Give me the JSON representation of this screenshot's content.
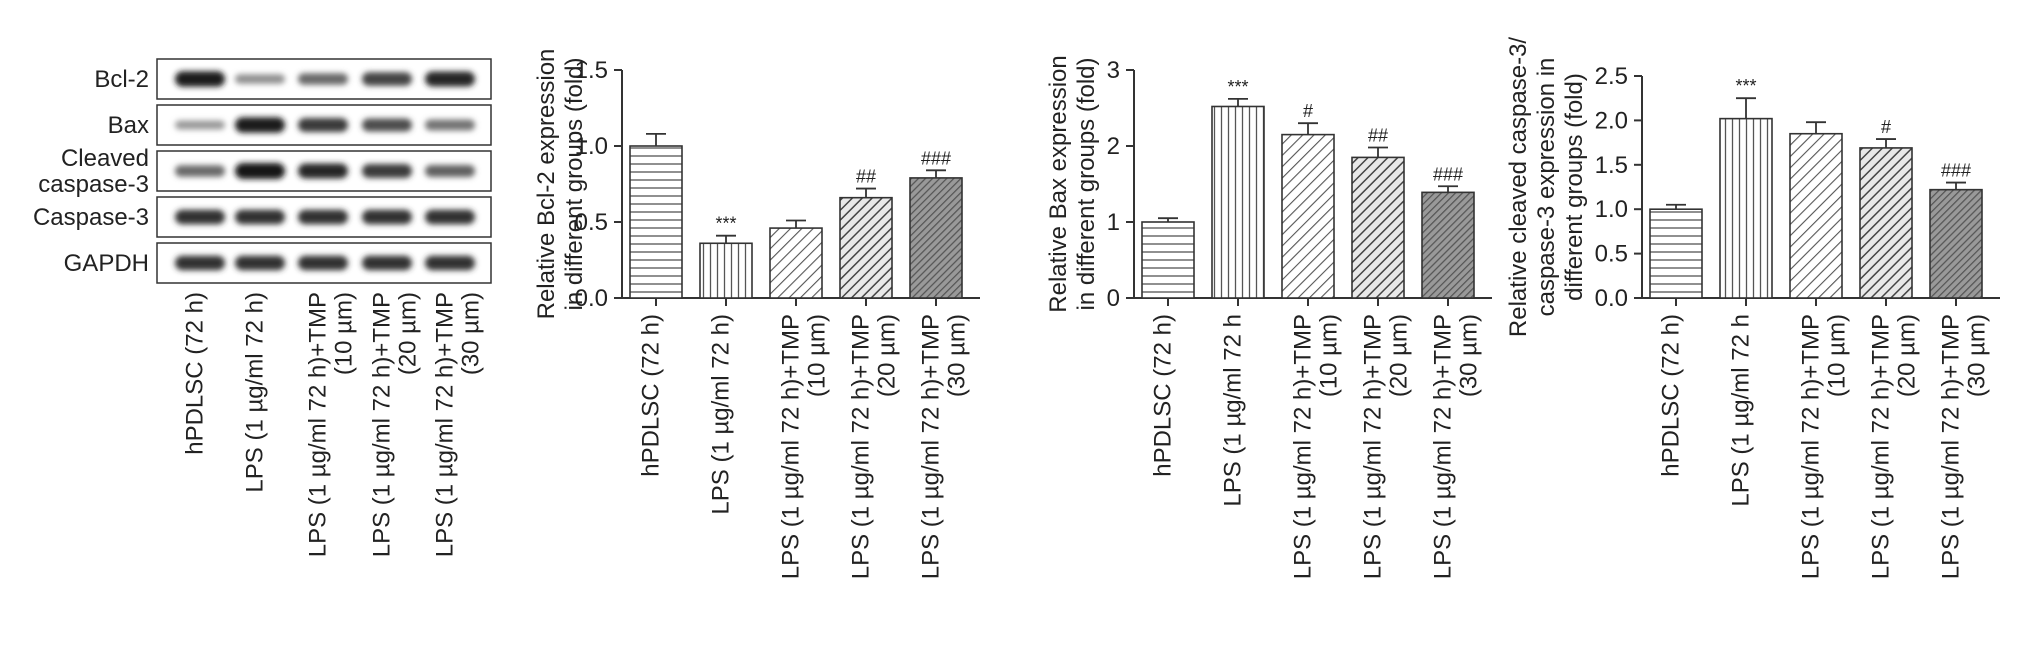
{
  "blot": {
    "rows": [
      "Bcl-2",
      "Bax",
      "Cleaved\ncaspase-3",
      "Caspase-3",
      "GAPDH"
    ],
    "lanes": [
      "hPDLSC (72 h)",
      "LPS (1 µg/ml 72 h)",
      "LPS (1 µg/ml 72 h)+TMP\n(10 µm)",
      "LPS (1 µg/ml 72 h)+TMP\n(20 µm)",
      "LPS (1 µg/ml 72 h)+TMP\n(30 µm)"
    ],
    "band_intensity": [
      [
        0.95,
        0.35,
        0.55,
        0.75,
        0.9
      ],
      [
        0.3,
        0.95,
        0.8,
        0.7,
        0.5
      ],
      [
        0.55,
        1.0,
        0.9,
        0.8,
        0.6
      ],
      [
        0.85,
        0.85,
        0.85,
        0.85,
        0.85
      ],
      [
        0.85,
        0.85,
        0.85,
        0.85,
        0.85
      ]
    ]
  },
  "chart_data": [
    {
      "type": "bar",
      "ylabel": "Relative Bcl-2 expression\nin different groups (fold)",
      "categories": [
        "hPDLSC (72 h)",
        "LPS (1 µg/ml 72 h)",
        "LPS (1 µg/ml 72 h)+TMP\n(10 µm)",
        "LPS (1 µg/ml 72 h)+TMP\n(20 µm)",
        "LPS (1 µg/ml 72 h)+TMP\n(30 µm)"
      ],
      "values": [
        1.0,
        0.36,
        0.46,
        0.66,
        0.79
      ],
      "errors": [
        0.08,
        0.05,
        0.05,
        0.06,
        0.05
      ],
      "significance": [
        "",
        "***",
        "",
        "##",
        "###"
      ],
      "ylim": [
        0,
        1.5
      ],
      "yticks": [
        "0.0",
        "0.5",
        "1.0",
        "1.5"
      ],
      "ytick_values": [
        0,
        0.5,
        1.0,
        1.5
      ]
    },
    {
      "type": "bar",
      "ylabel": "Relative Bax expression\nin different groups (fold)",
      "categories": [
        "hPDLSC (72 h)",
        "LPS (1 µg/ml 72 h",
        "LPS (1 µg/ml 72 h)+TMP\n(10 µm)",
        "LPS (1 µg/ml 72 h)+TMP\n(20 µm)",
        "LPS (1 µg/ml 72 h)+TMP\n(30 µm)"
      ],
      "values": [
        1.0,
        2.52,
        2.15,
        1.85,
        1.39
      ],
      "errors": [
        0.05,
        0.1,
        0.15,
        0.13,
        0.08
      ],
      "significance": [
        "",
        "***",
        "#",
        "##",
        "###"
      ],
      "ylim": [
        0,
        3
      ],
      "yticks": [
        "0",
        "1",
        "2",
        "3"
      ],
      "ytick_values": [
        0,
        1,
        2,
        3
      ]
    },
    {
      "type": "bar",
      "ylabel": "Relative cleaved caspase-3/\ncaspase-3 expression in\ndifferent groups (fold)",
      "categories": [
        "hPDLSC (72 h)",
        "LPS (1 µg/ml 72 h",
        "LPS (1 µg/ml 72 h)+TMP\n(10 µm)",
        "LPS (1 µg/ml 72 h)+TMP\n(20 µm)",
        "LPS (1 µg/ml 72 h)+TMP\n(30 µm)"
      ],
      "values": [
        1.0,
        2.02,
        1.85,
        1.69,
        1.22
      ],
      "errors": [
        0.05,
        0.23,
        0.13,
        0.1,
        0.08
      ],
      "significance": [
        "",
        "***",
        "",
        "#",
        "###"
      ],
      "ylim": [
        0,
        2.5
      ],
      "yticks": [
        "0.0",
        "0.5",
        "1.0",
        "1.5",
        "2.0",
        "2.5"
      ],
      "ytick_values": [
        0,
        0.5,
        1.0,
        1.5,
        2.0,
        2.5
      ]
    }
  ]
}
